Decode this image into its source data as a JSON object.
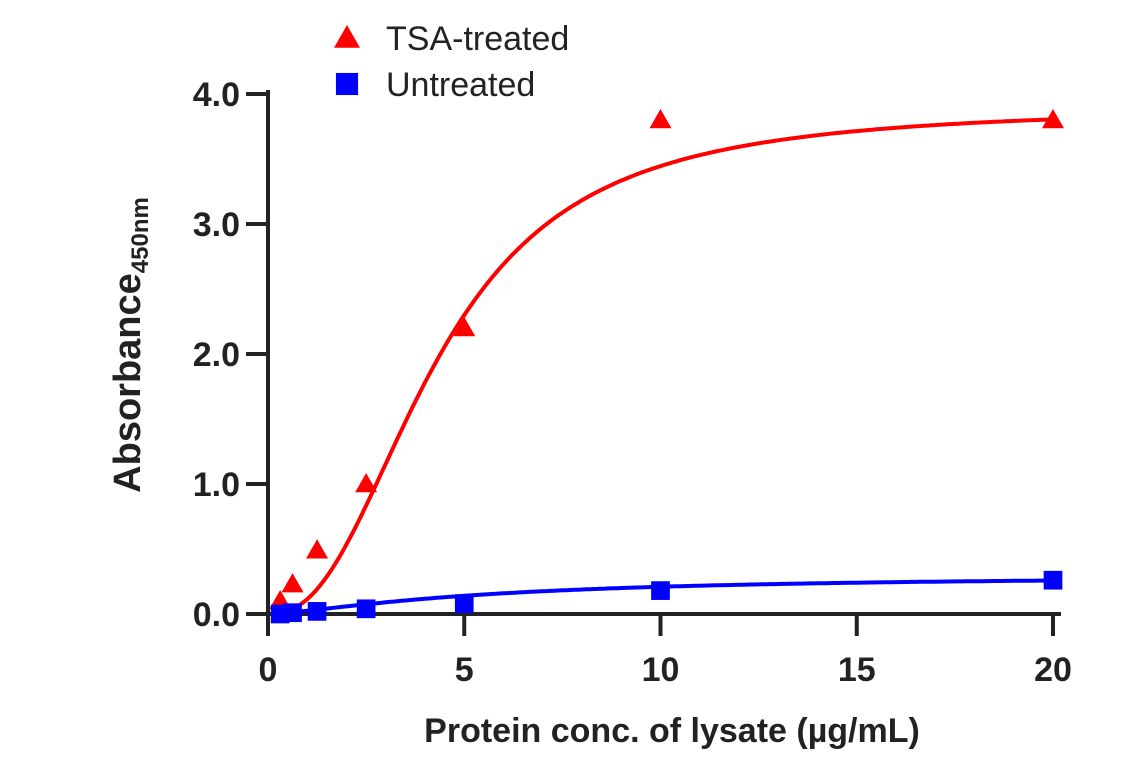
{
  "chart_data": {
    "type": "scatter",
    "title": "",
    "xlabel": "Protein conc. of lysate (µg/mL)",
    "ylabel": "Absorbance",
    "ylabel_sub": "450nm",
    "xlim": [
      0,
      20
    ],
    "ylim": [
      0,
      4.0
    ],
    "xticks": [
      0,
      5,
      10,
      15,
      20
    ],
    "yticks": [
      "0.0",
      "1.0",
      "2.0",
      "3.0",
      "4.0"
    ],
    "grid": false,
    "legend_position": "top-left",
    "series": [
      {
        "name": "TSA-treated",
        "marker": "triangle",
        "color": "#ff0000",
        "x": [
          0.31,
          0.625,
          1.25,
          2.5,
          5,
          10,
          20
        ],
        "y": [
          0.1,
          0.23,
          0.49,
          1.0,
          2.2,
          3.8,
          3.8
        ]
      },
      {
        "name": "Untreated",
        "marker": "square",
        "color": "#0000ff",
        "x": [
          0.31,
          0.625,
          1.25,
          2.5,
          5,
          10,
          20
        ],
        "y": [
          0.0,
          0.01,
          0.02,
          0.04,
          0.08,
          0.18,
          0.26
        ]
      }
    ]
  }
}
